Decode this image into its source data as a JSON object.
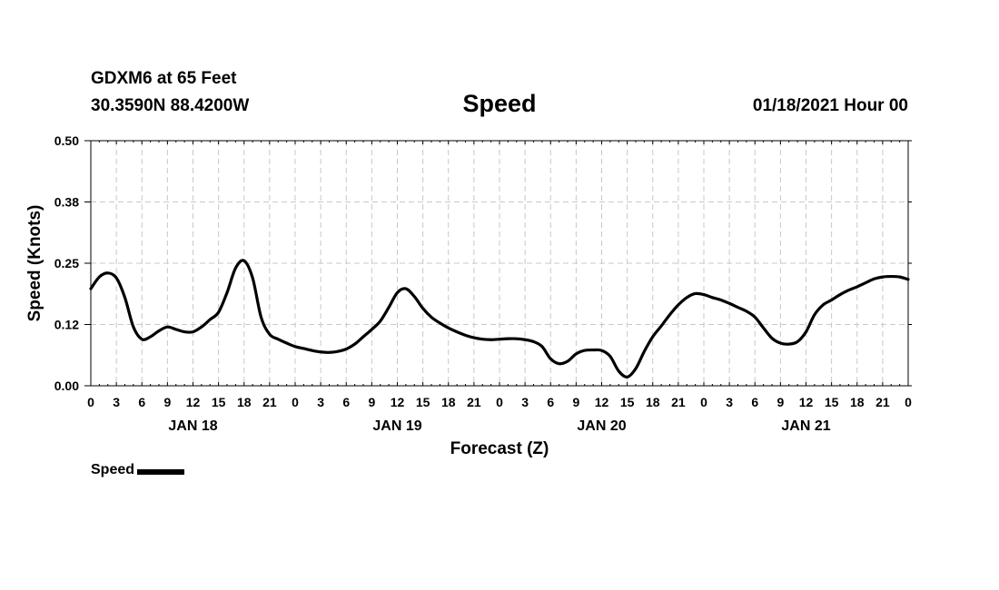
{
  "header": {
    "station": "GDXM6 at 65 Feet",
    "coords": "30.3590N 88.4200W",
    "title": "Speed",
    "datetime": "01/18/2021 Hour 00"
  },
  "legend": {
    "label": "Speed"
  },
  "chart_data": {
    "type": "line",
    "title": "Speed",
    "xlabel": "Forecast (Z)",
    "ylabel": "Speed (Knots)",
    "xlim": [
      0,
      96
    ],
    "ylim": [
      0,
      0.5
    ],
    "yticks": [
      "0.00",
      "0.12",
      "0.25",
      "0.38",
      "0.50"
    ],
    "ytick_values": [
      0,
      0.125,
      0.25,
      0.375,
      0.5
    ],
    "xtick_labels": [
      "0",
      "3",
      "6",
      "9",
      "12",
      "15",
      "18",
      "21",
      "0",
      "3",
      "6",
      "9",
      "12",
      "15",
      "18",
      "21",
      "0",
      "3",
      "6",
      "9",
      "12",
      "15",
      "18",
      "21",
      "0",
      "3",
      "6",
      "9",
      "12",
      "15",
      "18",
      "21",
      "0"
    ],
    "day_labels": [
      {
        "label": "JAN 18",
        "hour": 12
      },
      {
        "label": "JAN 19",
        "hour": 36
      },
      {
        "label": "JAN 20",
        "hour": 60
      },
      {
        "label": "JAN 21",
        "hour": 84
      }
    ],
    "grid": true,
    "legend_position": "bottom-left",
    "series": [
      {
        "name": "Speed",
        "x": [
          0,
          1,
          2,
          3,
          4,
          5,
          6,
          7,
          8,
          9,
          10,
          11,
          12,
          13,
          14,
          15,
          16,
          17,
          18,
          19,
          20,
          21,
          22,
          23,
          24,
          25,
          26,
          27,
          28,
          29,
          30,
          31,
          32,
          33,
          34,
          35,
          36,
          37,
          38,
          39,
          40,
          41,
          42,
          43,
          44,
          45,
          46,
          47,
          48,
          49,
          50,
          51,
          52,
          53,
          54,
          55,
          56,
          57,
          58,
          59,
          60,
          61,
          62,
          63,
          64,
          65,
          66,
          67,
          68,
          69,
          70,
          71,
          72,
          73,
          74,
          75,
          76,
          77,
          78,
          79,
          80,
          81,
          82,
          83,
          84,
          85,
          86,
          87,
          88,
          89,
          90,
          91,
          92,
          93,
          94,
          95,
          96
        ],
        "values": [
          0.198,
          0.222,
          0.23,
          0.22,
          0.18,
          0.12,
          0.095,
          0.1,
          0.112,
          0.12,
          0.115,
          0.11,
          0.11,
          0.12,
          0.135,
          0.15,
          0.19,
          0.24,
          0.255,
          0.22,
          0.14,
          0.105,
          0.095,
          0.087,
          0.08,
          0.076,
          0.072,
          0.069,
          0.068,
          0.07,
          0.075,
          0.085,
          0.1,
          0.115,
          0.132,
          0.16,
          0.19,
          0.198,
          0.182,
          0.158,
          0.14,
          0.128,
          0.118,
          0.11,
          0.103,
          0.098,
          0.095,
          0.094,
          0.095,
          0.096,
          0.096,
          0.094,
          0.09,
          0.08,
          0.055,
          0.045,
          0.05,
          0.065,
          0.072,
          0.073,
          0.072,
          0.06,
          0.03,
          0.018,
          0.035,
          0.07,
          0.1,
          0.122,
          0.145,
          0.165,
          0.18,
          0.188,
          0.186,
          0.18,
          0.175,
          0.168,
          0.16,
          0.152,
          0.14,
          0.118,
          0.097,
          0.087,
          0.085,
          0.09,
          0.11,
          0.145,
          0.165,
          0.175,
          0.186,
          0.195,
          0.202,
          0.21,
          0.218,
          0.222,
          0.223,
          0.222,
          0.217
        ]
      }
    ]
  }
}
